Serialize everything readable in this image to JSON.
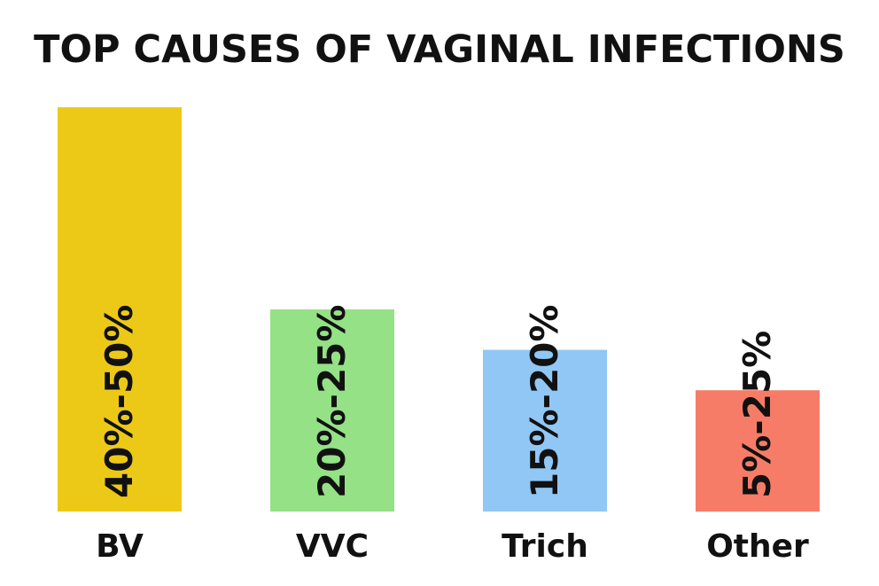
{
  "chart_data": {
    "type": "bar",
    "title": "TOP CAUSES OF VAGINAL INFECTIONS",
    "xlabel": "",
    "ylabel": "",
    "categories": [
      "BV",
      "VVC",
      "Trich",
      "Other"
    ],
    "ranges": [
      [
        40,
        50
      ],
      [
        20,
        25
      ],
      [
        15,
        20
      ],
      [
        5,
        25
      ]
    ],
    "values": [
      50,
      25,
      20,
      15
    ],
    "labels": [
      "40%-50%",
      "20%-25%",
      "15%-20%",
      "5%-25%"
    ],
    "colors": [
      "#EDC917",
      "#94E186",
      "#90C7F5",
      "#F77C68"
    ],
    "ylim": [
      0,
      50
    ],
    "grid": false,
    "legend": "none"
  }
}
